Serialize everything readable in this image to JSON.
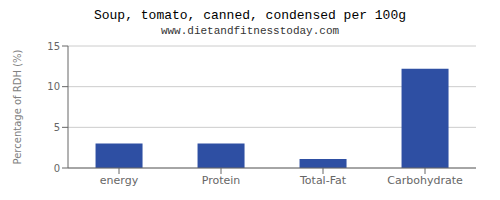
{
  "chart_data": {
    "type": "bar",
    "title": "Soup, tomato, canned, condensed per 100g",
    "subtitle": "www.dietandfitnesstoday.com",
    "categories": [
      "energy",
      "Protein",
      "Total-Fat",
      "Carbohydrate"
    ],
    "values": [
      3.0,
      3.0,
      1.1,
      12.2
    ],
    "color": "#2e4fa3",
    "ylabel": "Percentage of RDH (%)",
    "ylim": [
      0,
      15
    ],
    "yticks": [
      0,
      5,
      10,
      15
    ],
    "grid": true
  }
}
